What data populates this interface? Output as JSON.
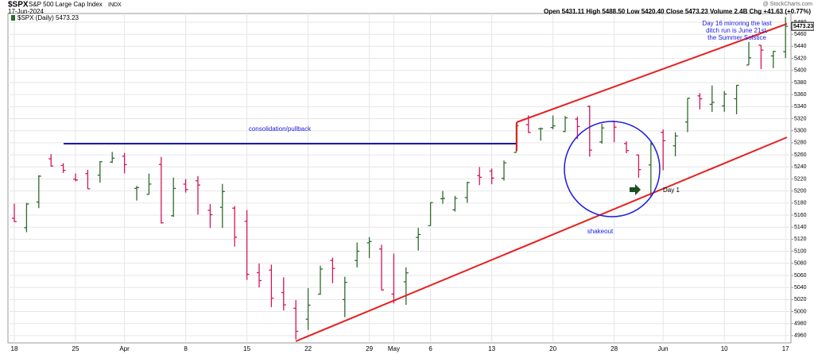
{
  "chart_data": {
    "type": "ohlc",
    "title": "$SPX",
    "subtitle": "S&P 500 Large Cap Index",
    "exchange": "INDX",
    "date": "17-Jun-2024",
    "quote": "Open 5431.11  High 5488.50  Low 5420.40  Close 5473.23  Volume 2.4B  Chg +41.63 (+0.77%)",
    "credit": "@ StockCharts.com",
    "legend": "$SPX (Daily) 5473.23",
    "last_price_label": "5473.23",
    "annotations": [
      "consolidation/pullback",
      "shakeout",
      "Day 1",
      "Day 16 mirroring the last",
      "ditch run is June 21st,",
      "the Summer Solstice"
    ],
    "up_color": "#2e6b2e",
    "down_color": "#d4145a",
    "categories": [
      "2024-03-18",
      "2024-03-19",
      "2024-03-20",
      "2024-03-21",
      "2024-03-22",
      "2024-03-25",
      "2024-03-26",
      "2024-03-27",
      "2024-03-28",
      "2024-04-01",
      "2024-04-02",
      "2024-04-03",
      "2024-04-04",
      "2024-04-05",
      "2024-04-08",
      "2024-04-09",
      "2024-04-10",
      "2024-04-11",
      "2024-04-12",
      "2024-04-15",
      "2024-04-16",
      "2024-04-17",
      "2024-04-18",
      "2024-04-19",
      "2024-04-22",
      "2024-04-23",
      "2024-04-24",
      "2024-04-25",
      "2024-04-26",
      "2024-04-29",
      "2024-04-30",
      "2024-05-01",
      "2024-05-02",
      "2024-05-03",
      "2024-05-06",
      "2024-05-07",
      "2024-05-08",
      "2024-05-09",
      "2024-05-10",
      "2024-05-13",
      "2024-05-14",
      "2024-05-15",
      "2024-05-16",
      "2024-05-17",
      "2024-05-20",
      "2024-05-21",
      "2024-05-22",
      "2024-05-23",
      "2024-05-24",
      "2024-05-28",
      "2024-05-29",
      "2024-05-30",
      "2024-05-31",
      "2024-06-03",
      "2024-06-04",
      "2024-06-05",
      "2024-06-06",
      "2024-06-07",
      "2024-06-10",
      "2024-06-11",
      "2024-06-12",
      "2024-06-13",
      "2024-06-14",
      "2024-06-17"
    ],
    "open": [
      5154.8,
      5139.1,
      5181.7,
      5253.4,
      5242.5,
      5219.5,
      5228.9,
      5226.3,
      5248.0,
      5257.6,
      5204.3,
      5194.4,
      5244.1,
      5158.9,
      5211.4,
      5217.0,
      5167.9,
      5172.9,
      5171.5,
      5149.7,
      5064.6,
      5068.9,
      5031.5,
      5005.4,
      4987.3,
      5028.9,
      5084.7,
      5019.9,
      5084.7,
      5114.1,
      5103.8,
      5029.0,
      5049.3,
      5123.0,
      5142.4,
      5187.2,
      5168.8,
      5189.0,
      5225.5,
      5233.1,
      5221.1,
      5263.9,
      5310.1,
      5303.1,
      5305.4,
      5298.7,
      5319.3,
      5340.3,
      5281.5,
      5315.9,
      5278.7,
      5259.8,
      5243.2,
      5297.2,
      5275.0,
      5314.5,
      5357.8,
      5343.8,
      5341.2,
      5353.0,
      5409.1,
      5441.9,
      5424.1,
      5431.11
    ],
    "high": [
      5179.0,
      5180.3,
      5226.2,
      5261.1,
      5246.1,
      5229.1,
      5235.2,
      5249.3,
      5264.9,
      5263.0,
      5208.3,
      5228.8,
      5256.6,
      5222.2,
      5219.6,
      5224.8,
      5178.4,
      5211.8,
      5175.0,
      5168.4,
      5079.8,
      5077.9,
      5056.7,
      5019.0,
      5038.8,
      5076.1,
      5089.5,
      5057.8,
      5114.6,
      5123.5,
      5110.8,
      5096.1,
      5073.2,
      5139.1,
      5181.0,
      5200.2,
      5191.9,
      5215.3,
      5239.7,
      5237.3,
      5250.4,
      5311.8,
      5325.5,
      5305.4,
      5325.3,
      5324.3,
      5323.2,
      5341.9,
      5311.6,
      5315.9,
      5282.3,
      5260.2,
      5280.3,
      5302.1,
      5297.4,
      5354.2,
      5362.4,
      5375.1,
      5365.8,
      5375.9,
      5447.3,
      5441.9,
      5432.4,
      5488.5
    ],
    "low": [
      5148.3,
      5131.6,
      5171.6,
      5240.7,
      5229.9,
      5216.1,
      5203.4,
      5213.9,
      5246.5,
      5229.2,
      5184.1,
      5194.4,
      5146.1,
      5157.2,
      5197.4,
      5160.8,
      5138.7,
      5138.8,
      5107.9,
      5052.5,
      5039.8,
      5007.3,
      5001.9,
      4953.6,
      4969.4,
      5027.9,
      5047.0,
      4990.6,
      5073.1,
      5088.7,
      5035.3,
      5013.5,
      5011.1,
      5101.2,
      5142.4,
      5178.9,
      5165.9,
      5180.4,
      5209.7,
      5211.2,
      5217.4,
      5263.9,
      5296.2,
      5283.6,
      5302.4,
      5297.9,
      5286.0,
      5256.9,
      5278.4,
      5280.9,
      5262.7,
      5222.1,
      5191.7,
      5234.3,
      5257.6,
      5297.6,
      5335.4,
      5331.3,
      5331.5,
      5327.3,
      5409.1,
      5402.5,
      5403.8,
      5420.4
    ],
    "close": [
      5149.4,
      5178.5,
      5224.6,
      5241.5,
      5234.2,
      5218.2,
      5203.6,
      5248.5,
      5254.4,
      5243.8,
      5205.8,
      5211.5,
      5147.2,
      5204.3,
      5202.4,
      5209.9,
      5160.6,
      5199.1,
      5123.4,
      5061.8,
      5051.4,
      5022.2,
      5011.1,
      4967.2,
      5010.6,
      5070.6,
      5071.6,
      5048.4,
      5100.0,
      5116.2,
      5035.7,
      5018.4,
      5064.2,
      5127.8,
      5180.7,
      5187.7,
      5187.7,
      5214.1,
      5222.7,
      5221.4,
      5246.7,
      5308.2,
      5297.1,
      5303.3,
      5308.1,
      5321.4,
      5307.0,
      5267.8,
      5304.7,
      5306.0,
      5267.0,
      5235.5,
      5277.5,
      5283.4,
      5291.3,
      5354.0,
      5353.0,
      5347.0,
      5360.8,
      5375.3,
      5421.0,
      5433.7,
      5431.6,
      5473.23
    ],
    "xticks": [
      {
        "value": "2024-03-18",
        "label": "18"
      },
      {
        "value": "2024-03-25",
        "label": "25"
      },
      {
        "value": "2024-04-01",
        "label": "Apr"
      },
      {
        "value": "2024-04-08",
        "label": "8"
      },
      {
        "value": "2024-04-15",
        "label": "15"
      },
      {
        "value": "2024-04-22",
        "label": "22"
      },
      {
        "value": "2024-04-29",
        "label": "29"
      },
      {
        "value": "2024-05-01",
        "label": "May"
      },
      {
        "value": "2024-05-06",
        "label": "6"
      },
      {
        "value": "2024-05-13",
        "label": "13"
      },
      {
        "value": "2024-05-20",
        "label": "20"
      },
      {
        "value": "2024-05-28",
        "label": "28"
      },
      {
        "value": "2024-06-03",
        "label": "Jun"
      },
      {
        "value": "2024-06-10",
        "label": "10"
      },
      {
        "value": "2024-06-17",
        "label": "17"
      }
    ],
    "ylim": [
      4948,
      5494.5
    ],
    "yticks": [
      4960,
      4980,
      5000,
      5020,
      5040,
      5060,
      5080,
      5100,
      5120,
      5140,
      5160,
      5180,
      5200,
      5220,
      5240,
      5260,
      5280,
      5300,
      5320,
      5340,
      5360,
      5380,
      5400,
      5420,
      5440,
      5460,
      5480
    ],
    "grid": true
  }
}
